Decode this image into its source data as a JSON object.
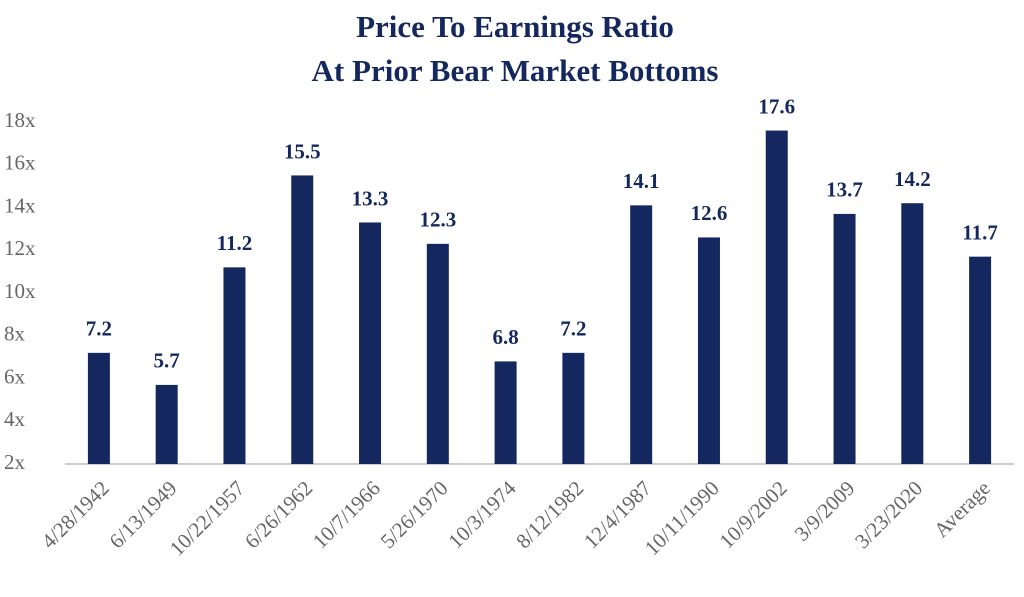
{
  "chart_data": {
    "type": "bar",
    "title": "Price To Earnings Ratio",
    "subtitle": "At Prior Bear Market Bottoms",
    "categories": [
      "4/28/1942",
      "6/13/1949",
      "10/22/1957",
      "6/26/1962",
      "10/7/1966",
      "5/26/1970",
      "10/3/1974",
      "8/12/1982",
      "12/4/1987",
      "10/11/1990",
      "10/9/2002",
      "3/9/2009",
      "3/23/2020",
      "Average"
    ],
    "values": [
      7.2,
      5.7,
      11.2,
      15.5,
      13.3,
      12.3,
      6.8,
      7.2,
      14.1,
      12.6,
      17.6,
      13.7,
      14.2,
      11.7
    ],
    "color": "#14275e",
    "ylim": [
      2,
      18
    ],
    "yticks": [
      {
        "value": 2,
        "label": "2x"
      },
      {
        "value": 4,
        "label": "4x"
      },
      {
        "value": 6,
        "label": "6x"
      },
      {
        "value": 8,
        "label": "8x"
      },
      {
        "value": 10,
        "label": "10x"
      },
      {
        "value": 12,
        "label": "12x"
      },
      {
        "value": 14,
        "label": "14x"
      },
      {
        "value": 16,
        "label": "16x"
      },
      {
        "value": 18,
        "label": "18x"
      }
    ],
    "grid": false
  }
}
